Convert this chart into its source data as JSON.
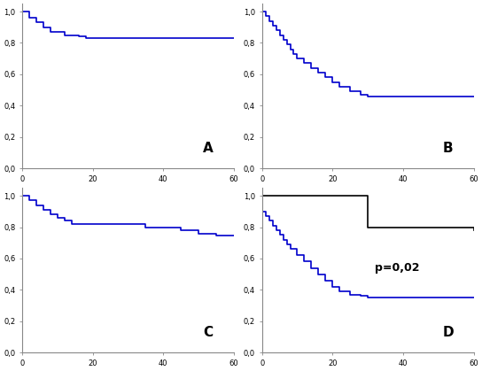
{
  "panel_A": {
    "label": "A",
    "color": "#0000CC",
    "times": [
      0,
      2,
      4,
      6,
      8,
      12,
      16,
      18,
      60
    ],
    "surv": [
      1.0,
      0.96,
      0.93,
      0.9,
      0.87,
      0.85,
      0.84,
      0.83,
      0.83
    ],
    "xlim": [
      0,
      60
    ],
    "ylim": [
      0.0,
      1.05
    ],
    "xticks": [
      0,
      20,
      40,
      60
    ],
    "yticks": [
      0.0,
      0.2,
      0.4,
      0.6,
      0.8,
      1.0
    ]
  },
  "panel_B": {
    "label": "B",
    "color": "#0000CC",
    "times": [
      0,
      1,
      2,
      3,
      4,
      5,
      6,
      7,
      8,
      9,
      10,
      12,
      14,
      16,
      18,
      20,
      22,
      25,
      28,
      30,
      60
    ],
    "surv": [
      1.0,
      0.97,
      0.94,
      0.91,
      0.88,
      0.85,
      0.82,
      0.79,
      0.76,
      0.73,
      0.7,
      0.67,
      0.64,
      0.61,
      0.58,
      0.55,
      0.52,
      0.49,
      0.47,
      0.46,
      0.46
    ],
    "xlim": [
      0,
      60
    ],
    "ylim": [
      0.0,
      1.05
    ],
    "xticks": [
      0,
      20,
      40,
      60
    ],
    "yticks": [
      0.0,
      0.2,
      0.4,
      0.6,
      0.8,
      1.0
    ]
  },
  "panel_C": {
    "label": "C",
    "color": "#0000CC",
    "times": [
      0,
      2,
      4,
      6,
      8,
      10,
      12,
      14,
      16,
      18,
      20,
      22,
      25,
      30,
      35,
      40,
      45,
      50,
      55,
      60
    ],
    "surv": [
      1.0,
      0.97,
      0.94,
      0.91,
      0.88,
      0.86,
      0.84,
      0.82,
      0.82,
      0.82,
      0.82,
      0.82,
      0.82,
      0.82,
      0.8,
      0.8,
      0.78,
      0.76,
      0.745,
      0.745
    ],
    "xlim": [
      0,
      60
    ],
    "ylim": [
      0.0,
      1.05
    ],
    "xticks": [
      0,
      20,
      40,
      60
    ],
    "yticks": [
      0.0,
      0.2,
      0.4,
      0.6,
      0.8,
      1.0
    ]
  },
  "panel_D": {
    "label": "D",
    "color_blue": "#0000CC",
    "color_black": "#000000",
    "times_black": [
      0,
      2,
      5,
      20,
      30,
      60
    ],
    "surv_black": [
      1.0,
      1.0,
      1.0,
      1.0,
      0.8,
      0.78
    ],
    "times_blue": [
      0,
      1,
      2,
      3,
      4,
      5,
      6,
      7,
      8,
      10,
      12,
      14,
      16,
      18,
      20,
      22,
      25,
      28,
      30,
      60
    ],
    "surv_blue": [
      0.9,
      0.87,
      0.84,
      0.81,
      0.78,
      0.75,
      0.72,
      0.69,
      0.66,
      0.62,
      0.58,
      0.54,
      0.5,
      0.46,
      0.42,
      0.39,
      0.37,
      0.36,
      0.35,
      0.35
    ],
    "annotation": "p=0,02",
    "xlim": [
      0,
      60
    ],
    "ylim": [
      0.0,
      1.05
    ],
    "xticks": [
      0,
      20,
      40,
      60
    ],
    "yticks": [
      0.0,
      0.2,
      0.4,
      0.6,
      0.8,
      1.0
    ]
  },
  "figsize": [
    5.44,
    4.19
  ],
  "dpi": 100,
  "label_fontsize": 11,
  "tick_fontsize": 6,
  "annot_fontsize": 9,
  "linewidth": 1.2
}
